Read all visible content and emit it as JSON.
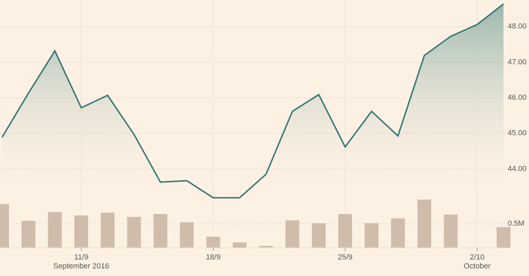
{
  "chart_data": {
    "type": "area",
    "categories": [
      null,
      null,
      null,
      [
        "11/9",
        "September 2016"
      ],
      null,
      null,
      null,
      null,
      [
        "18/9"
      ],
      null,
      null,
      null,
      null,
      [
        "25/9"
      ],
      null,
      null,
      null,
      null,
      [
        "2/10",
        "October"
      ],
      null
    ],
    "series": [
      {
        "type": "area",
        "color": "#2f7372",
        "values": [
          44.89,
          46.13,
          47.32,
          45.72,
          46.07,
          44.97,
          43.63,
          43.67,
          43.19,
          43.19,
          43.85,
          45.62,
          46.09,
          44.62,
          45.62,
          44.93,
          47.19,
          47.73,
          48.06,
          48.64
        ]
      },
      {
        "type": "bar",
        "axis": "y2",
        "color": "#cfbcab",
        "values": [
          0.91,
          0.56,
          0.74,
          0.67,
          0.73,
          0.64,
          0.7,
          0.53,
          0.23,
          0.11,
          0.04,
          0.57,
          0.51,
          0.7,
          0.51,
          0.61,
          1.0,
          0.69,
          null,
          0.43
        ]
      }
    ],
    "ylim": [
      43.1,
      48.75
    ],
    "yticks": [
      {
        "value": 44,
        "label": "44.00"
      },
      {
        "value": 45,
        "label": "45.00"
      },
      {
        "value": 46,
        "label": "46.00"
      },
      {
        "value": 47,
        "label": "47.00"
      },
      {
        "value": 48,
        "label": "48.00"
      }
    ],
    "y2lim": [
      0,
      1
    ],
    "y2ticks": [
      {
        "value": 0.5,
        "label": "0.5M"
      }
    ],
    "grid": true
  }
}
